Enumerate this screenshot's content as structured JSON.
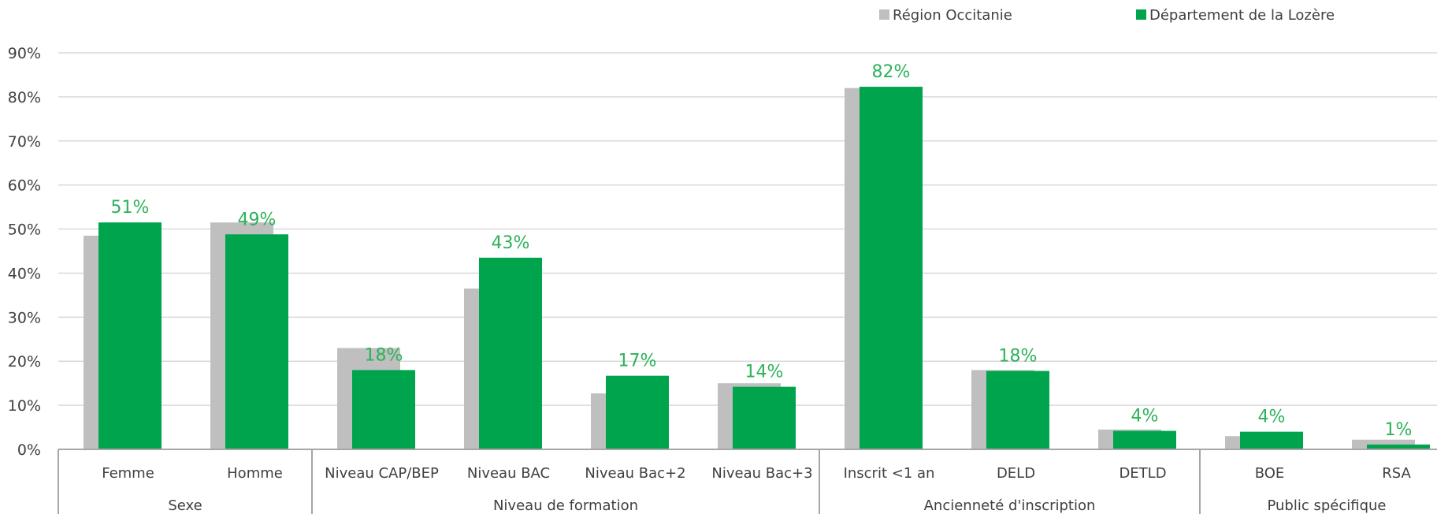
{
  "chart_data": {
    "type": "bar",
    "title": "",
    "xlabel": "",
    "ylabel": "",
    "ylim": [
      0,
      90
    ],
    "yticks": [
      "0%",
      "10%",
      "20%",
      "30%",
      "40%",
      "50%",
      "60%",
      "70%",
      "80%",
      "90%"
    ],
    "grid": true,
    "legend_position": "top-right",
    "categories": [
      "Femme",
      "Homme",
      "Niveau CAP/BEP",
      "Niveau BAC",
      "Niveau Bac+2",
      "Niveau Bac+3",
      "Inscrit <1 an",
      "DELD",
      "DETLD",
      "BOE",
      "RSA"
    ],
    "groups": [
      {
        "label": "Sexe",
        "count": 2
      },
      {
        "label": "Niveau de formation",
        "count": 4
      },
      {
        "label": "Ancienneté d'inscription",
        "count": 3
      },
      {
        "label": "Public spécifique",
        "count": 2
      }
    ],
    "series": [
      {
        "name": "Région Occitanie",
        "color": "#bfbfbf",
        "values": [
          48.5,
          51.5,
          23,
          36.5,
          12.7,
          15,
          82,
          18,
          4.5,
          3,
          2.2
        ]
      },
      {
        "name": "Département de la Lozère",
        "color": "#00a44c",
        "values": [
          51.5,
          48.8,
          18,
          43.5,
          16.7,
          14.2,
          82.3,
          17.8,
          4.2,
          4,
          1.1
        ]
      }
    ],
    "data_labels": [
      "51%",
      "49%",
      "18%",
      "43%",
      "17%",
      "14%",
      "82%",
      "18%",
      "4%",
      "4%",
      "1%"
    ]
  }
}
